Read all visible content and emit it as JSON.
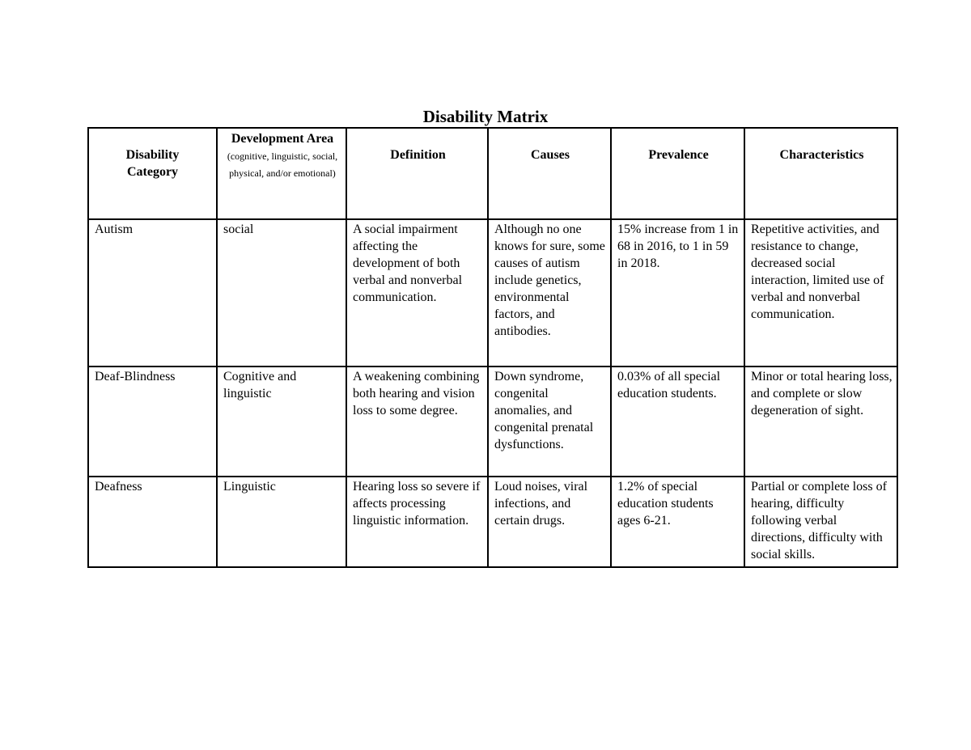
{
  "title": "Disability Matrix",
  "headers": {
    "category": "Disability Category",
    "dev_area": "Development Area",
    "dev_area_note": "(cognitive, linguistic, social, physical, and/or emotional)",
    "definition": "Definition",
    "causes": "Causes",
    "prevalence": "Prevalence",
    "characteristics": "Characteristics"
  },
  "rows": [
    {
      "category": "Autism",
      "dev_area": "social",
      "definition": "A social impairment affecting the development of both verbal and nonverbal communication.",
      "causes": "Although no one knows for sure, some causes of autism include genetics, environmental factors, and antibodies.",
      "prevalence": "15% increase from 1 in 68 in 2016, to 1 in 59 in 2018.",
      "characteristics": "Repetitive activities, and resistance to change, decreased social interaction, limited use of verbal and nonverbal communication."
    },
    {
      "category": "Deaf-Blindness",
      "dev_area": "Cognitive and linguistic",
      "definition": "A weakening combining both hearing and vision loss to some degree.",
      "causes": "Down syndrome, congenital anomalies, and congenital prenatal dysfunctions.",
      "prevalence": "0.03% of all special education students.",
      "characteristics": "Minor or total hearing loss, and complete or slow degeneration of sight."
    },
    {
      "category": "Deafness",
      "dev_area": "Linguistic",
      "definition": "Hearing loss so severe if affects processing linguistic information.",
      "causes": "Loud noises, viral infections, and certain drugs.",
      "prevalence": "1.2% of special education students ages 6-21.",
      "characteristics": "Partial or complete loss of hearing, difficulty following verbal directions, difficulty with social skills."
    }
  ]
}
